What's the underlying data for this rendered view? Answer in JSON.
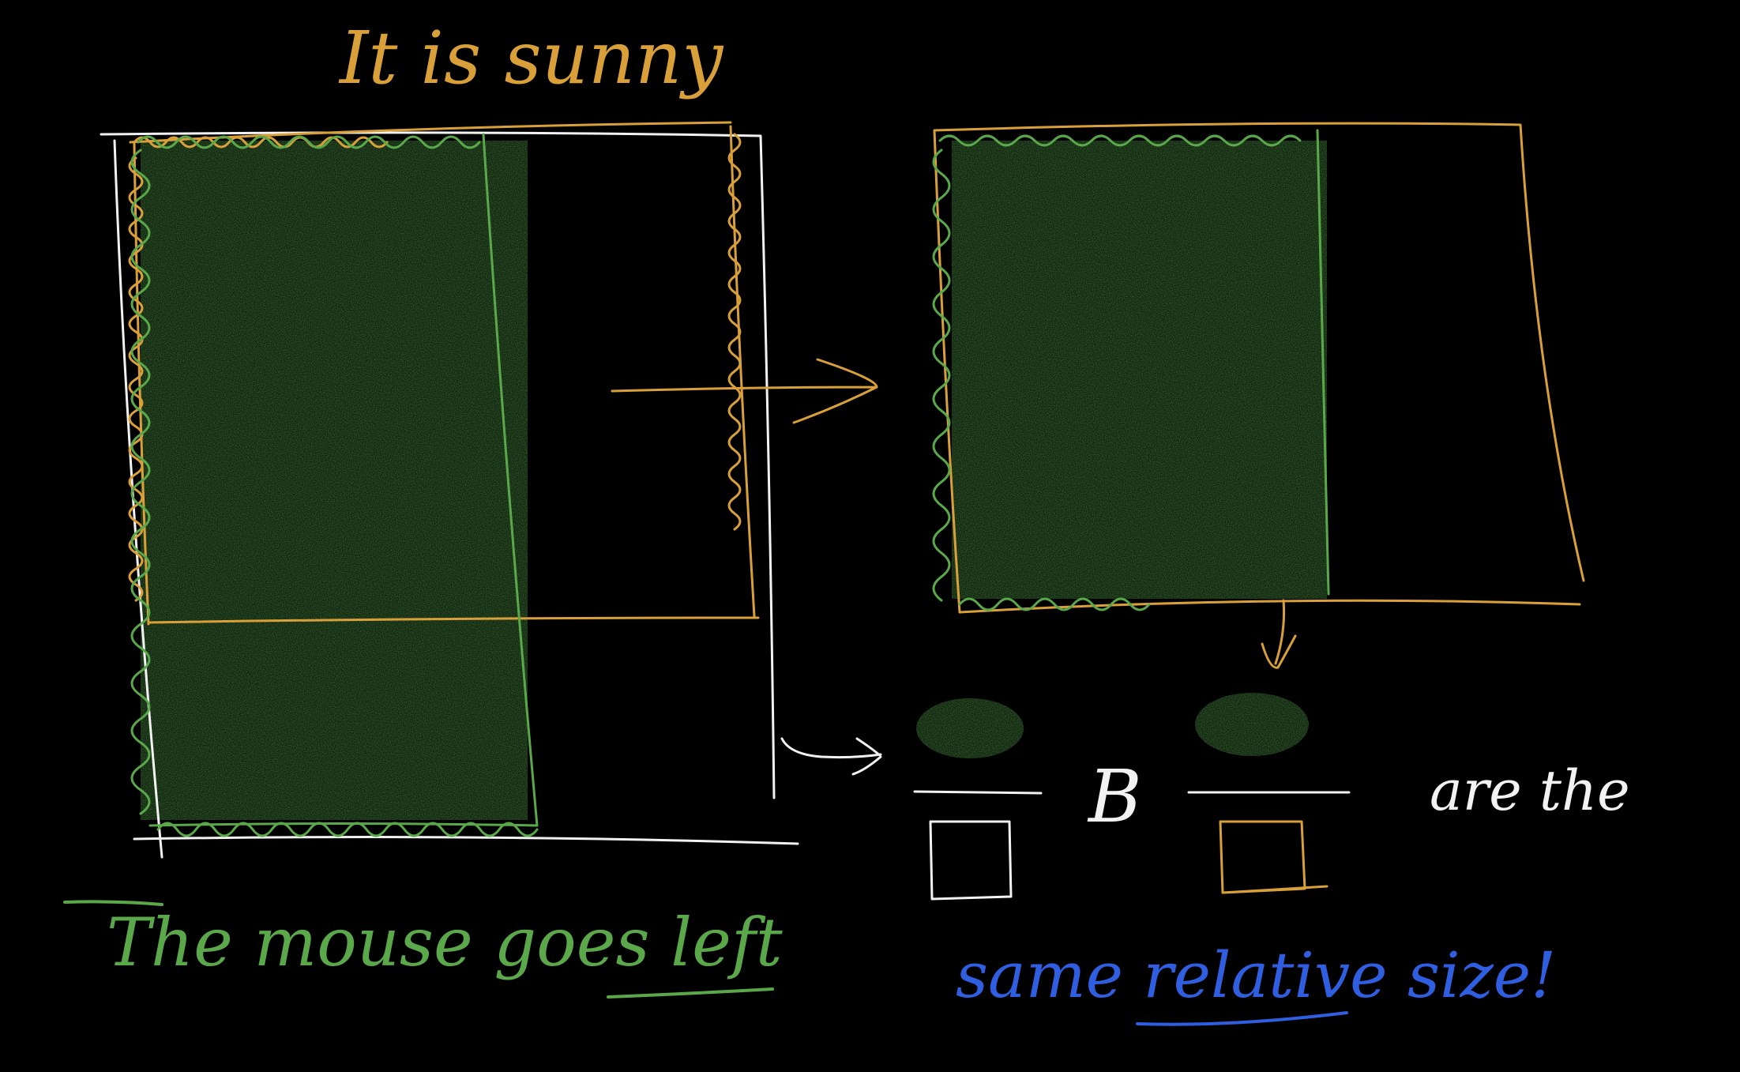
{
  "colors": {
    "background": "#000000",
    "orange": "#d9a03a",
    "green": "#5aa84a",
    "white": "#f2f2f2",
    "blue": "#2f5fe0",
    "shade": "#2d6a26"
  },
  "notes": {
    "top": "It is sunny",
    "bottom_left": "The mouse goes left",
    "bottom_left_underlined": "left",
    "ratio_symbol": "В",
    "ratio_word": "are the",
    "conclusion": "same relative size!",
    "conclusion_underlined": "relative"
  }
}
